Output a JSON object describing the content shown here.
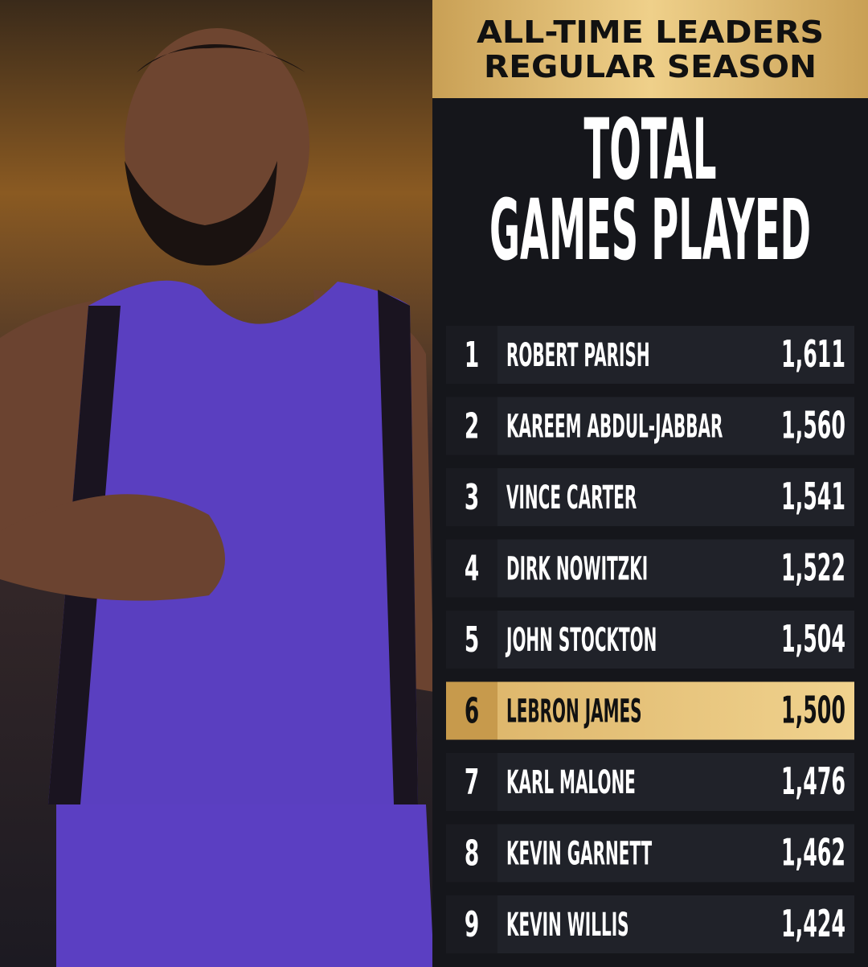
{
  "header": {
    "line1": "ALL-TIME LEADERS",
    "line2": "REGULAR SEASON"
  },
  "title": {
    "line1": "TOTAL",
    "line2": "GAMES PLAYED"
  },
  "table": {
    "highlight_row": 5,
    "rows": [
      [
        "1",
        "ROBERT PARISH",
        "1,611"
      ],
      [
        "2",
        "KAREEM ABDUL-JABBAR",
        "1,560"
      ],
      [
        "3",
        "VINCE CARTER",
        "1,541"
      ],
      [
        "4",
        "DIRK NOWITZKI",
        "1,522"
      ],
      [
        "5",
        "JOHN STOCKTON",
        "1,504"
      ],
      [
        "6",
        "LEBRON JAMES",
        "1,500"
      ],
      [
        "7",
        "KARL MALONE",
        "1,476"
      ],
      [
        "8",
        "KEVIN GARNETT",
        "1,462"
      ],
      [
        "9",
        "KEVIN WILLIS",
        "1,424"
      ]
    ]
  }
}
